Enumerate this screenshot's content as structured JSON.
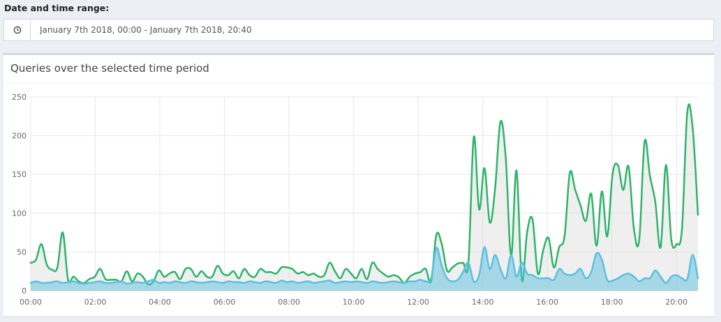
{
  "range": {
    "label": "Date and time range:",
    "value": "January 7th 2018, 00:00 - January 7th 2018, 20:40",
    "icon": "clock-icon"
  },
  "card": {
    "title": "Queries over the selected time period"
  },
  "colors": {
    "total": "#2db36a",
    "blocked": "#5bc0de",
    "total_fill": "rgba(220,220,220,0.45)",
    "blocked_fill": "rgba(91,192,222,0.5)",
    "grid": "#e6e6e6"
  },
  "chart_data": {
    "type": "area",
    "x_unit": "hours since 00:00",
    "xlim": [
      0,
      20.6667
    ],
    "ylim": [
      0,
      250
    ],
    "yticks": [
      0,
      50,
      100,
      150,
      200,
      250
    ],
    "xticks": [
      "00:00",
      "02:00",
      "04:00",
      "06:00",
      "08:00",
      "10:00",
      "12:00",
      "14:00",
      "16:00",
      "18:00",
      "20:00"
    ],
    "grid": true,
    "legend": "none",
    "series": [
      {
        "key": "total",
        "values": [
          36,
          40,
          60,
          34,
          27,
          30,
          75,
          14,
          18,
          12,
          10,
          15,
          18,
          28,
          15,
          14,
          14,
          12,
          25,
          12,
          22,
          18,
          8,
          12,
          26,
          18,
          22,
          24,
          15,
          28,
          28,
          18,
          25,
          18,
          18,
          32,
          22,
          20,
          25,
          16,
          28,
          20,
          18,
          28,
          24,
          24,
          22,
          30,
          30,
          28,
          22,
          24,
          20,
          22,
          18,
          20,
          36,
          25,
          16,
          28,
          22,
          16,
          28,
          15,
          36,
          28,
          22,
          18,
          20,
          17,
          10,
          18,
          22,
          24,
          28,
          12,
          72,
          60,
          26,
          30,
          35,
          36,
          36,
          198,
          105,
          158,
          88,
          132,
          218,
          170,
          45,
          155,
          14,
          76,
          92,
          22,
          52,
          68,
          30,
          56,
          70,
          152,
          130,
          110,
          90,
          125,
          58,
          128,
          70,
          150,
          162,
          130,
          160,
          80,
          66,
          192,
          148,
          115,
          56,
          162,
          66,
          60,
          80,
          230,
          210,
          98
        ]
      },
      {
        "key": "blocked",
        "values": [
          10,
          12,
          10,
          10,
          11,
          12,
          10,
          11,
          12,
          10,
          9,
          10,
          11,
          12,
          10,
          10,
          11,
          12,
          9,
          10,
          11,
          10,
          12,
          14,
          10,
          11,
          10,
          12,
          11,
          10,
          12,
          11,
          10,
          11,
          12,
          11,
          10,
          12,
          11,
          11,
          10,
          12,
          11,
          10,
          12,
          11,
          10,
          13,
          11,
          12,
          10,
          11,
          12,
          10,
          11,
          12,
          13,
          10,
          11,
          12,
          11,
          12,
          11,
          10,
          12,
          11,
          10,
          11,
          12,
          11,
          10,
          12,
          12,
          14,
          12,
          16,
          55,
          32,
          16,
          12,
          14,
          24,
          36,
          12,
          20,
          56,
          28,
          46,
          28,
          16,
          46,
          18,
          36,
          22,
          20,
          16,
          16,
          16,
          14,
          28,
          22,
          20,
          22,
          28,
          16,
          24,
          48,
          40,
          14,
          13,
          16,
          20,
          22,
          18,
          12,
          16,
          16,
          26,
          18,
          10,
          18,
          20,
          16,
          15,
          46,
          16
        ]
      }
    ]
  }
}
